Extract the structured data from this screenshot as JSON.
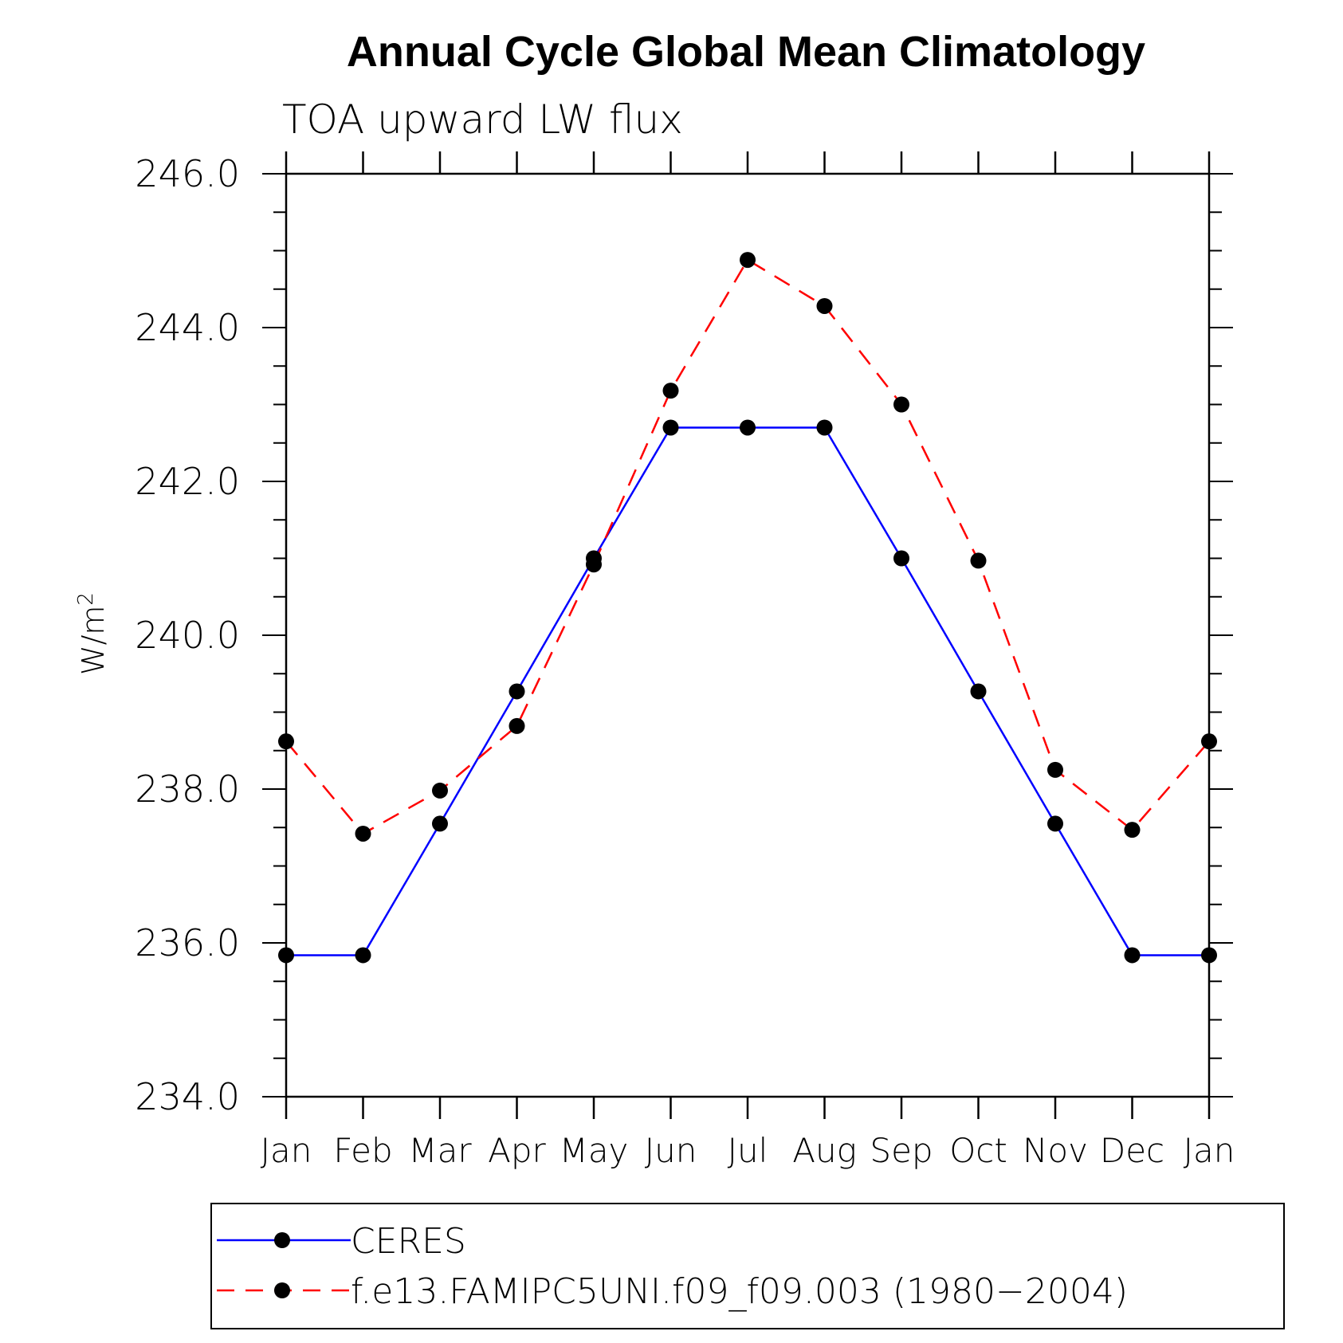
{
  "chart_data": {
    "type": "line",
    "title": "Annual Cycle Global Mean Climatology",
    "subtitle": "TOA upward LW flux",
    "ylabel": "W/m",
    "ylabel_superscript": "2",
    "ylim": [
      234.0,
      246.0
    ],
    "yticks": [
      "234.0",
      "236.0",
      "238.0",
      "240.0",
      "242.0",
      "244.0",
      "246.0"
    ],
    "categories": [
      "Jan",
      "Feb",
      "Mar",
      "Apr",
      "May",
      "Jun",
      "Jul",
      "Aug",
      "Sep",
      "Oct",
      "Nov",
      "Dec",
      "Jan"
    ],
    "series": [
      {
        "name": "CERES",
        "color": "#0000ff",
        "dash": "solid",
        "values": [
          235.84,
          235.84,
          237.55,
          239.27,
          241.0,
          242.7,
          242.7,
          242.7,
          241.0,
          239.27,
          237.55,
          235.84,
          235.84
        ]
      },
      {
        "name": "f.e13.FAMIPC5UNI.f09_f09.003 (1980−2004)",
        "color": "#ff0000",
        "dash": "dashed",
        "values": [
          238.62,
          237.42,
          237.98,
          238.82,
          240.92,
          243.18,
          244.88,
          244.28,
          243.0,
          240.97,
          238.25,
          237.47,
          238.62
        ]
      }
    ],
    "grid": false,
    "legend": "bottom"
  }
}
